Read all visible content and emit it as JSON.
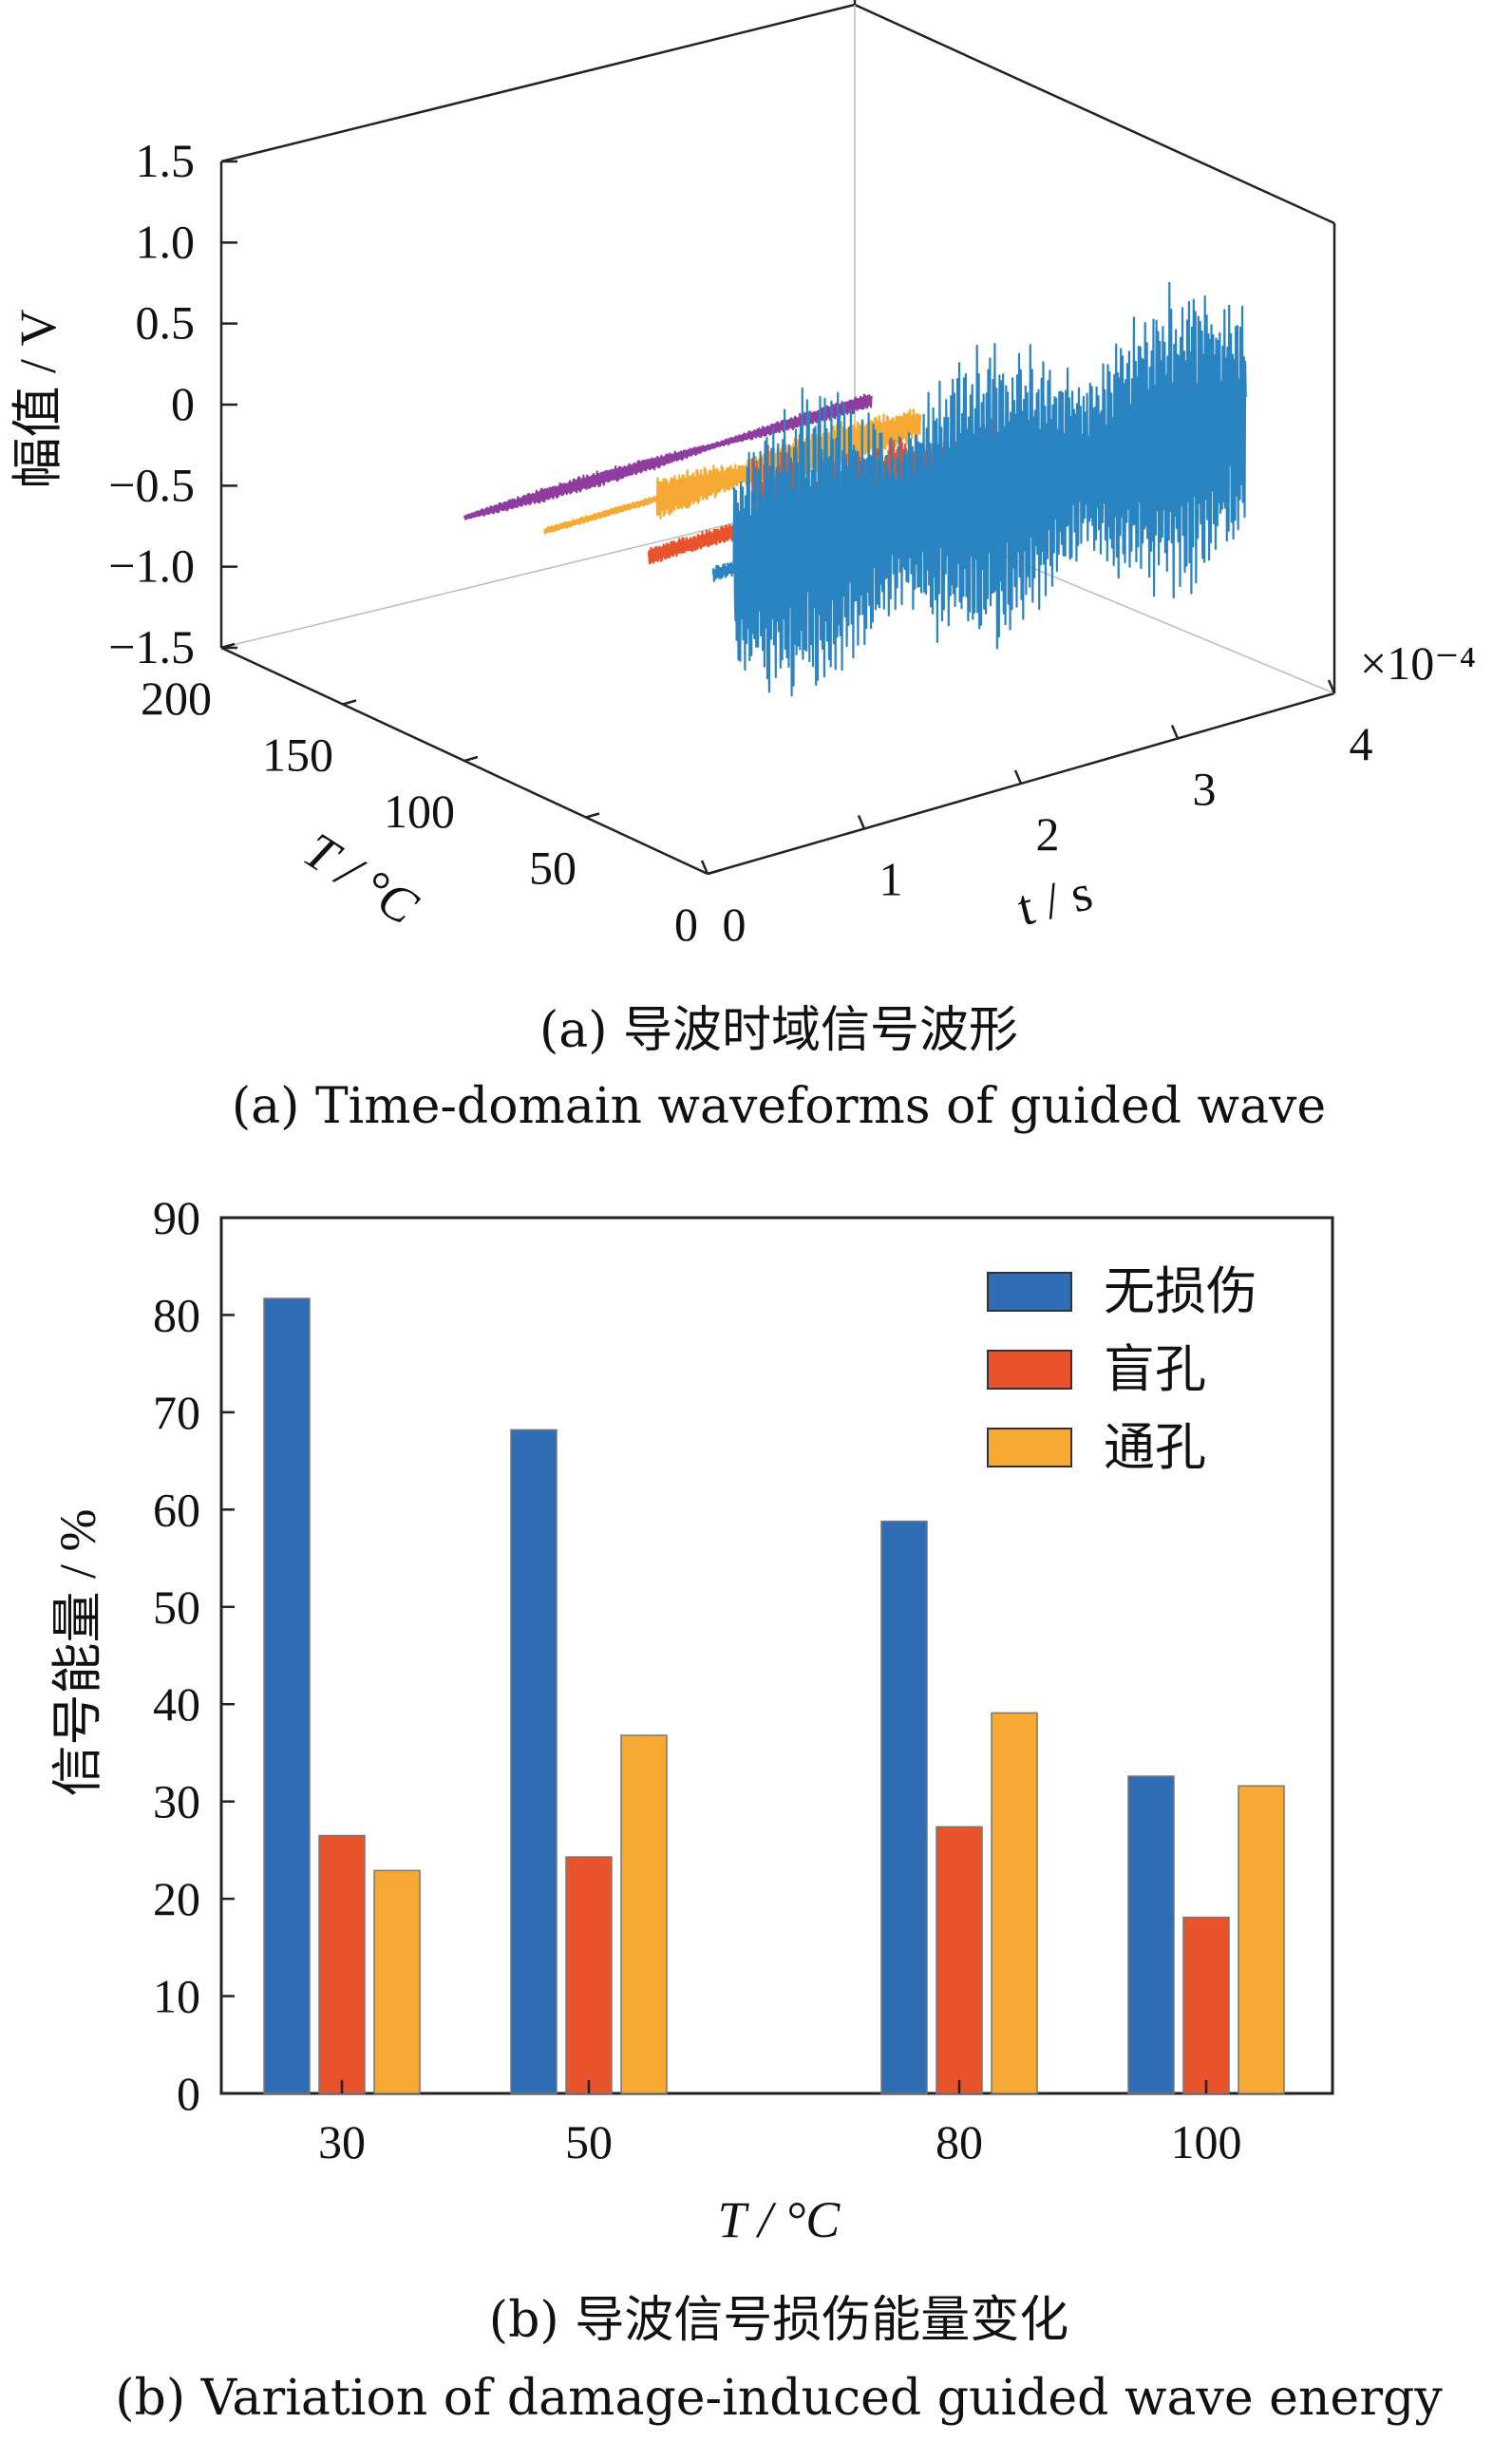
{
  "colors": {
    "blue": "#2f6eb5",
    "red": "#e8532c",
    "yellow": "#f6a933",
    "purple": "#8e3d9e",
    "wave_blue": "#2a84c2"
  },
  "panel_a": {
    "caption_cn": "(a)  导波时域信号波形",
    "caption_en": "(a)  Time-domain waveforms of guided wave",
    "ylabel": "幅值 / V",
    "xlabel": "t / s",
    "tlabel": "T / °C",
    "exponent": "×10⁻⁴",
    "zticks": [
      "1.5",
      "1.0",
      "0.5",
      "0",
      "−0.5",
      "−1.0",
      "−1.5"
    ],
    "tticks": [
      "200",
      "150",
      "100",
      "50",
      "0"
    ],
    "xticks": [
      "0",
      "1",
      "2",
      "3",
      "4"
    ]
  },
  "chart_data": [
    {
      "type": "line",
      "title": "",
      "xlabel": "t / s",
      "ylabel": "幅值 / V",
      "zlabel": "T / °C",
      "x_range": [
        0,
        4
      ],
      "x_scale": "×10⁻⁴",
      "y_range": [
        -1.5,
        1.5
      ],
      "T_range": [
        0,
        200
      ],
      "series": [
        {
          "T": 30,
          "color": "#2a84c2",
          "t_range": [
            0.5,
            3.9
          ],
          "peak_amplitude": 1.0
        },
        {
          "T": 50,
          "color": "#e8532c",
          "t_range": [
            0.4,
            2.6
          ],
          "peak_amplitude": 0.55
        },
        {
          "T": 80,
          "color": "#f6a933",
          "t_range": [
            0.2,
            2.6
          ],
          "peak_amplitude": 0.2
        },
        {
          "T": 100,
          "color": "#8e3d9e",
          "t_range": [
            0.0,
            2.6
          ],
          "peak_amplitude": 0.05
        }
      ]
    },
    {
      "type": "bar",
      "title": "",
      "xlabel": "T / °C",
      "ylabel": "信号能量 / %",
      "ylim": [
        0,
        90
      ],
      "yticks": [
        0,
        10,
        20,
        30,
        40,
        50,
        60,
        70,
        80,
        90
      ],
      "categories": [
        "30",
        "50",
        "80",
        "100"
      ],
      "legend_position": "top-right",
      "series": [
        {
          "name": "无损伤",
          "color": "#2f6eb5",
          "values": [
            81.7,
            68.2,
            58.8,
            32.6
          ]
        },
        {
          "name": "盲孔",
          "color": "#e8532c",
          "values": [
            26.5,
            24.3,
            27.4,
            18.1
          ]
        },
        {
          "name": "通孔",
          "color": "#f6a933",
          "values": [
            22.9,
            36.8,
            39.1,
            31.6
          ]
        }
      ]
    }
  ],
  "panel_b": {
    "caption_cn": "(b)  导波信号损伤能量变化",
    "caption_en": "(b)  Variation of damage-induced guided wave energy"
  }
}
